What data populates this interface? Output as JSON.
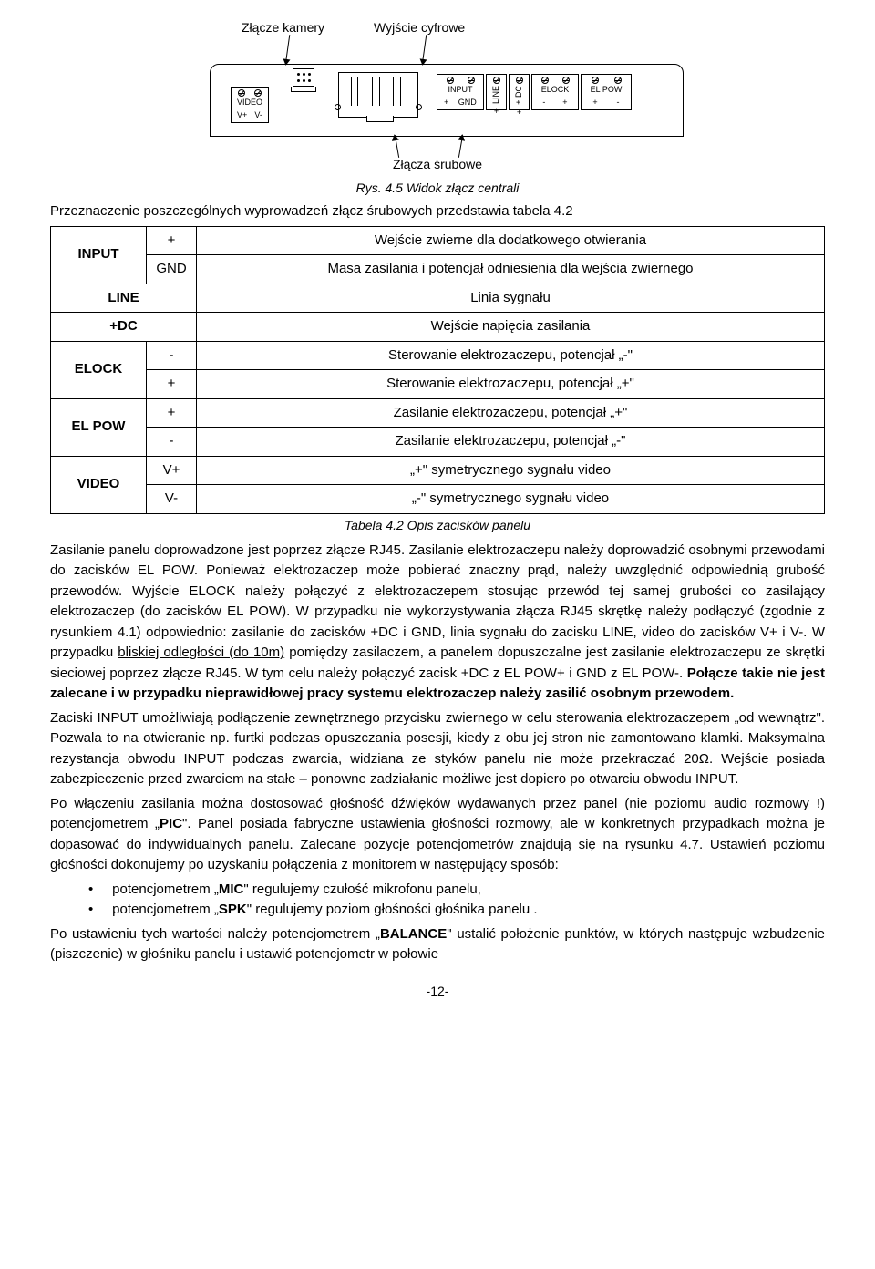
{
  "diagram": {
    "callout_camera": "Złącze kamery",
    "callout_digital": "Wyjście cyfrowe",
    "callout_screws": "Złącza śrubowe",
    "video": {
      "title": "VIDEO",
      "p1": "V+",
      "p2": "V-"
    },
    "input": {
      "title": "INPUT",
      "p1": "+",
      "p2": "GND"
    },
    "line_label": "LINE",
    "line_p": "+",
    "dc_label": "+ DC",
    "dc_p": "+",
    "elock": {
      "title": "ELOCK",
      "p1": "-",
      "p2": "+"
    },
    "elpow": {
      "title": "EL POW",
      "p1": "+",
      "p2": "-"
    },
    "fig_caption": "Rys. 4.5 Widok złącz centrali"
  },
  "intro": "Przeznaczenie poszczególnych wyprowadzeń złącz śrubowych przedstawia tabela 4.2",
  "table": {
    "caption": "Tabela 4.2 Opis zacisków panelu",
    "rows": [
      {
        "hdr": "INPUT",
        "sub": "+",
        "desc": "Wejście zwierne dla dodatkowego otwierania"
      },
      {
        "hdr": "",
        "sub": "GND",
        "desc": "Masa zasilania i potencjał odniesienia dla wejścia zwiernego"
      },
      {
        "hdr": "LINE",
        "sub": "",
        "desc": "Linia sygnału",
        "span": true
      },
      {
        "hdr": "+DC",
        "sub": "",
        "desc": "Wejście napięcia zasilania",
        "span": true
      },
      {
        "hdr": "ELOCK",
        "sub": "-",
        "desc": "Sterowanie elektrozaczepu, potencjał „-\""
      },
      {
        "hdr": "",
        "sub": "+",
        "desc": "Sterowanie elektrozaczepu, potencjał „+\""
      },
      {
        "hdr": "EL POW",
        "sub": "+",
        "desc": "Zasilanie elektrozaczepu, potencjał „+\""
      },
      {
        "hdr": "",
        "sub": "-",
        "desc": "Zasilanie elektrozaczepu, potencjał „-\""
      },
      {
        "hdr": "VIDEO",
        "sub": "V+",
        "desc": "„+\" symetrycznego sygnału video"
      },
      {
        "hdr": "",
        "sub": "V-",
        "desc": "„-\" symetrycznego sygnału video"
      }
    ]
  },
  "para1_a": "Zasilanie panelu doprowadzone jest poprzez złącze RJ45. Zasilanie elektrozaczepu należy doprowadzić osobnymi przewodami do zacisków EL POW. Ponieważ elektrozaczep może pobierać znaczny prąd, należy uwzględnić odpowiednią grubość przewodów. Wyjście ELOCK należy połączyć z elektrozaczepem stosując przewód tej samej grubości co zasilający elektrozaczep (do zacisków EL POW). W przypadku nie wykorzystywania złącza RJ45 skrętkę należy podłączyć (zgodnie z rysunkiem 4.1) odpowiednio: zasilanie do zacisków +DC i GND, linia sygnału do zacisku LINE, video do zacisków V+ i V-. W przypadku ",
  "para1_u": "bliskiej odległości (do 10m)",
  "para1_b": " pomiędzy zasilaczem, a panelem dopuszczalne jest zasilanie elektrozaczepu ze skrętki sieciowej poprzez złącze RJ45. W tym celu należy połączyć zacisk +DC z EL POW+ i GND z EL POW-. ",
  "para1_bold": "Połącze takie nie jest zalecane i w przypadku nieprawidłowej pracy systemu elektrozaczep należy zasilić osobnym przewodem.",
  "para2": "Zaciski INPUT umożliwiają podłączenie zewnętrznego przycisku zwiernego w celu sterowania elektrozaczepem „od wewnątrz\". Pozwala to na otwieranie np. furtki podczas opuszczania posesji, kiedy z obu jej stron nie zamontowano klamki. Maksymalna rezystancja obwodu INPUT podczas zwarcia, widziana ze styków panelu nie może przekraczać 20Ω. Wejście posiada zabezpieczenie przed zwarciem na stałe – ponowne zadziałanie możliwe jest dopiero po otwarciu obwodu INPUT.",
  "para3_a": "Po włączeniu zasilania można dostosować głośność dźwięków wydawanych przez panel (nie poziomu audio rozmowy !) potencjometrem „",
  "para3_pic": "PIC",
  "para3_b": "\". Panel posiada fabryczne ustawienia głośności rozmowy, ale w konkretnych przypadkach można je dopasować do indywidualnych panelu. Zalecane pozycje potencjometrów znajdują się na rysunku 4.7. Ustawień poziomu głośności dokonujemy po uzyskaniu połączenia z monitorem w następujący sposób:",
  "bullet1_a": "potencjometrem „",
  "bullet1_b": "MIC",
  "bullet1_c": "\" regulujemy czułość mikrofonu panelu,",
  "bullet2_a": "potencjometrem „",
  "bullet2_b": "SPK",
  "bullet2_c": "\" regulujemy poziom głośności głośnika panelu .",
  "para4_a": "Po ustawieniu tych wartości należy potencjometrem „",
  "para4_bal": "BALANCE",
  "para4_b": "\" ustalić położenie punktów, w których następuje wzbudzenie (piszczenie) w głośniku panelu i ustawić potencjometr w połowie",
  "pagenum": "-12-"
}
